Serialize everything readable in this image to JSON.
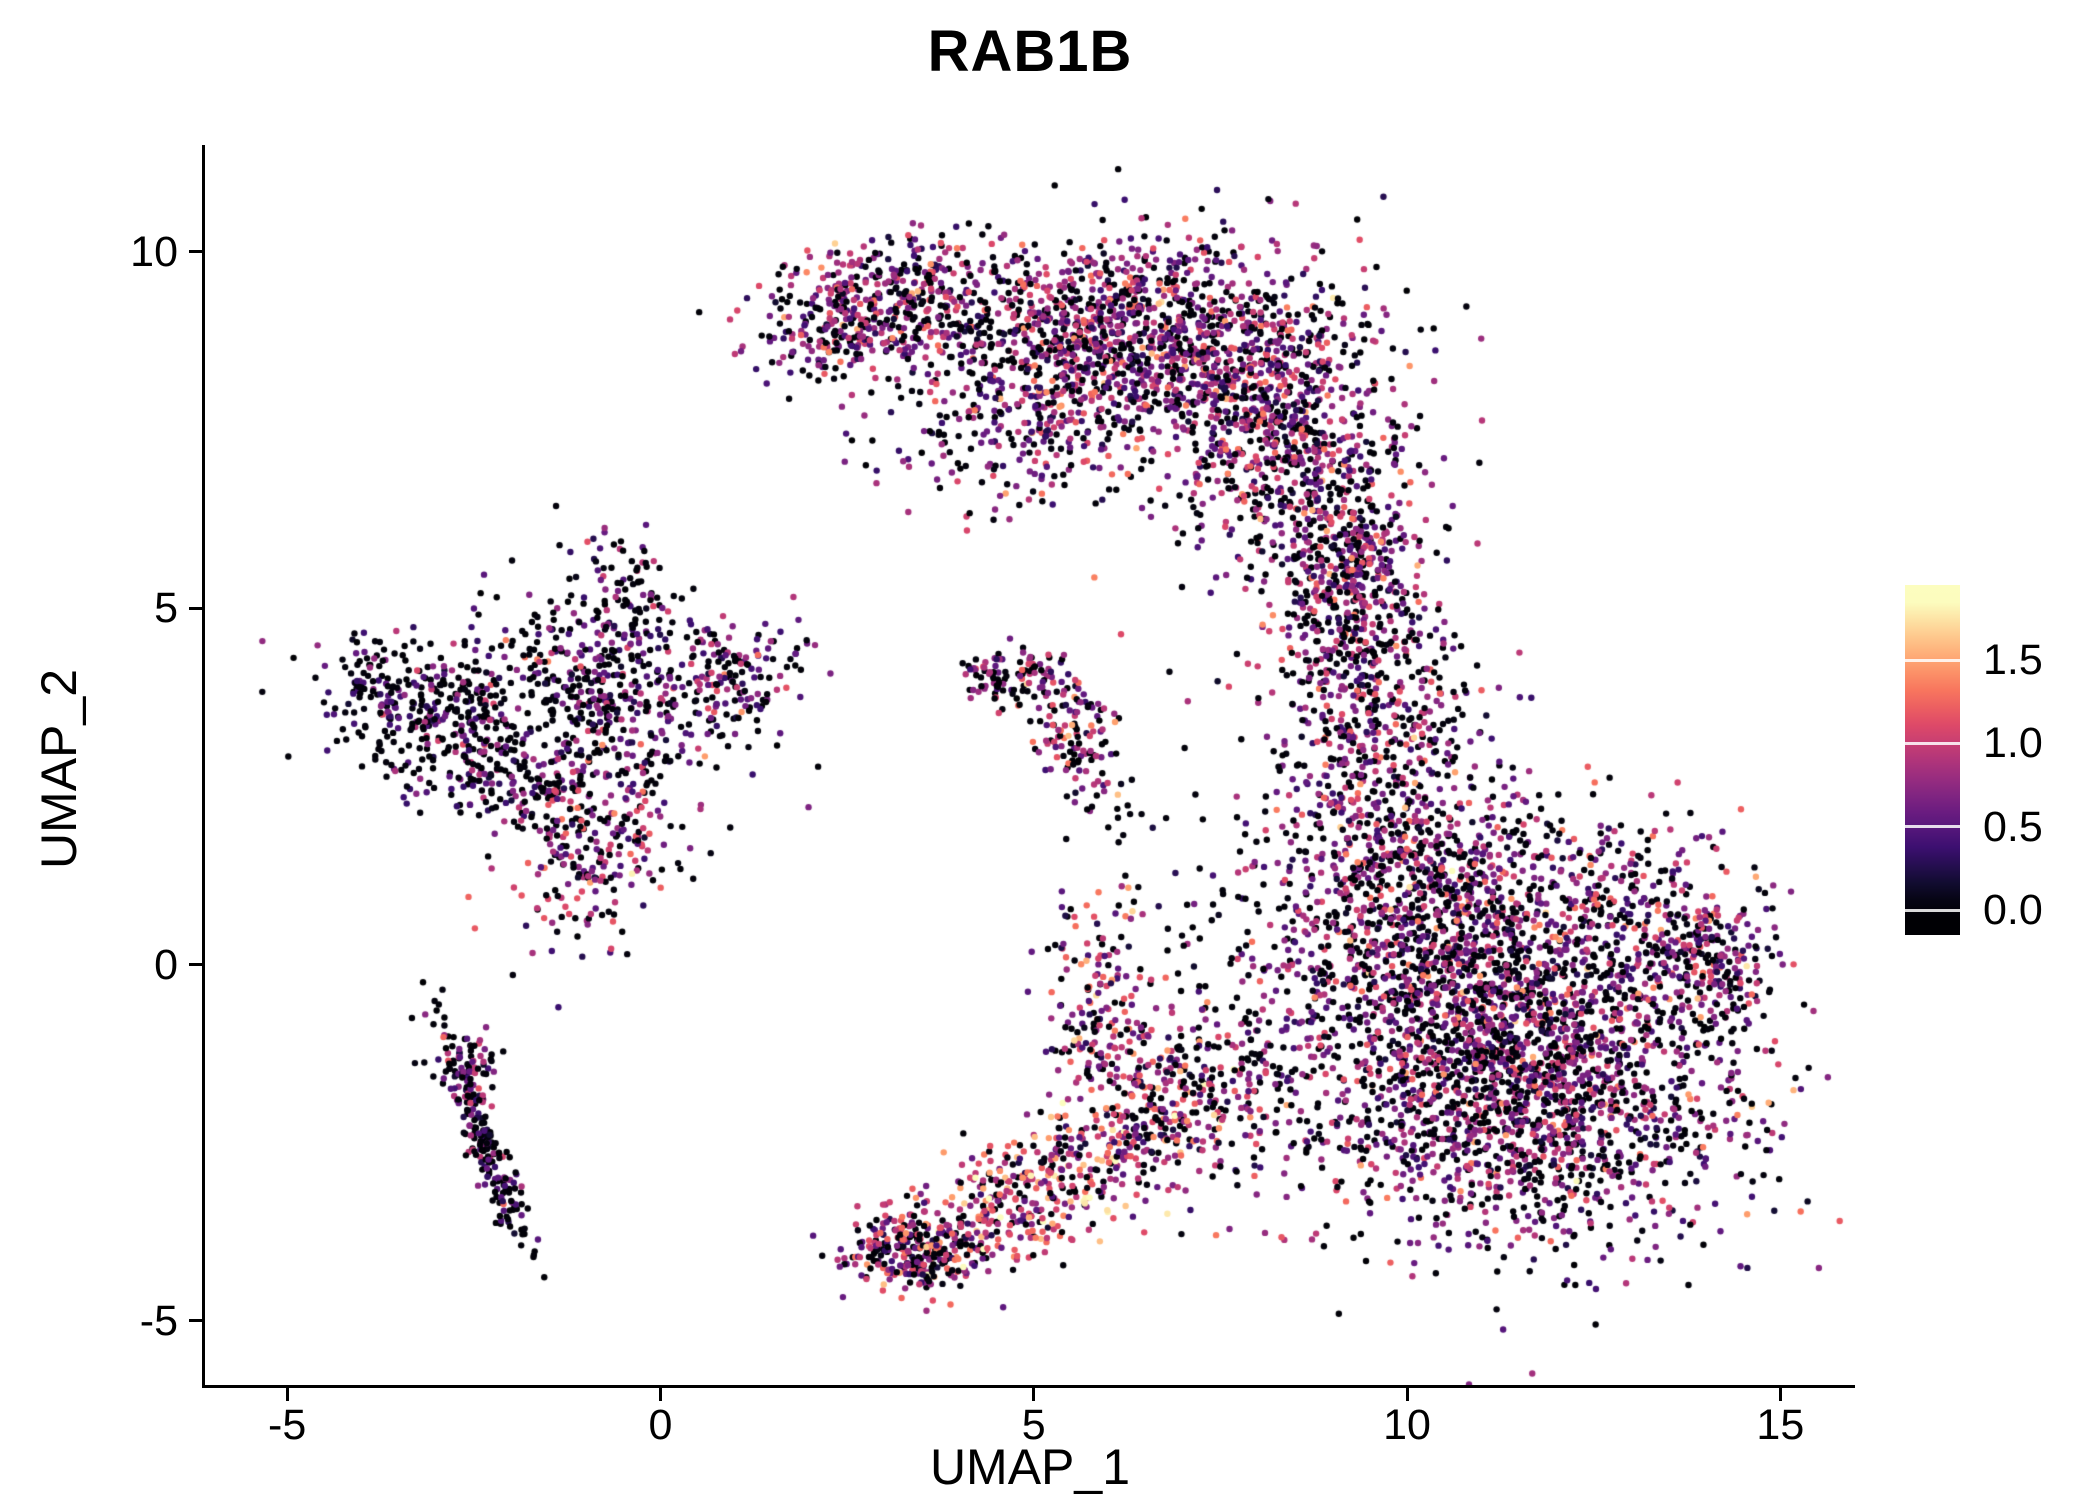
{
  "figure": {
    "background": "#ffffff",
    "axis_color": "#000000"
  },
  "chart_data": {
    "type": "scatter",
    "title": "RAB1B",
    "xlabel": "UMAP_1",
    "ylabel": "UMAP_2",
    "xlim": [
      -6.1,
      16.0
    ],
    "ylim": [
      -5.9,
      11.5
    ],
    "xticks": [
      -5,
      0,
      5,
      10,
      15
    ],
    "xtick_labels": [
      "-5",
      "0",
      "5",
      "10",
      "15"
    ],
    "yticks": [
      -5,
      0,
      5,
      10
    ],
    "ytick_labels": [
      "-5",
      "0",
      "5",
      "10"
    ],
    "grid": false,
    "point_radius": 3.2,
    "seed": 42,
    "colorbar": {
      "colormap": "magma",
      "ticks": [
        0.0,
        0.5,
        1.0,
        1.5
      ],
      "tick_labels": [
        "0.0",
        "0.5",
        "1.0",
        "1.5"
      ],
      "vmax": 1.85,
      "bar_lim": [
        -0.15,
        1.95
      ],
      "stops": [
        [
          0,
          "#000004"
        ],
        [
          0.1,
          "#140e36"
        ],
        [
          0.2,
          "#3b0f70"
        ],
        [
          0.3,
          "#641a80"
        ],
        [
          0.4,
          "#8c2981"
        ],
        [
          0.5,
          "#b73779"
        ],
        [
          0.6,
          "#de4968"
        ],
        [
          0.7,
          "#f7705c"
        ],
        [
          0.8,
          "#fe9f6d"
        ],
        [
          0.9,
          "#fecf92"
        ],
        [
          1,
          "#fcfdbf"
        ]
      ]
    },
    "clusters": [
      {
        "name": "top-arc-left",
        "n": 500,
        "cx": 2.9,
        "cy": 9.2,
        "sx": 0.85,
        "sy": 0.45,
        "rot": 12,
        "p0": 0.32,
        "mean": 0.75,
        "sd": 0.35
      },
      {
        "name": "top-arc-main",
        "n": 1300,
        "cx": 6.2,
        "cy": 8.8,
        "sx": 1.35,
        "sy": 0.75,
        "rot": 0,
        "p0": 0.32,
        "mean": 0.75,
        "sd": 0.35
      },
      {
        "name": "top-arc-right",
        "n": 650,
        "cx": 8.3,
        "cy": 7.5,
        "sx": 0.8,
        "sy": 0.95,
        "rot": 0,
        "p0": 0.33,
        "mean": 0.75,
        "sd": 0.35
      },
      {
        "name": "top-arc-tail",
        "n": 300,
        "cx": 9.3,
        "cy": 5.9,
        "sx": 0.45,
        "sy": 0.85,
        "rot": 0,
        "p0": 0.35,
        "mean": 0.7,
        "sd": 0.35
      },
      {
        "name": "top-arc-under",
        "n": 180,
        "cx": 4.9,
        "cy": 7.8,
        "sx": 1.1,
        "sy": 0.6,
        "rot": 15,
        "p0": 0.35,
        "mean": 0.7,
        "sd": 0.35
      },
      {
        "name": "right-main",
        "n": 2600,
        "cx": 11.4,
        "cy": -1.3,
        "sx": 1.55,
        "sy": 1.25,
        "rot": -8,
        "p0": 0.37,
        "mean": 0.7,
        "sd": 0.35
      },
      {
        "name": "right-upper",
        "n": 700,
        "cx": 10.2,
        "cy": 1.0,
        "sx": 1.0,
        "sy": 0.9,
        "rot": 0,
        "p0": 0.36,
        "mean": 0.72,
        "sd": 0.35
      },
      {
        "name": "right-strip",
        "n": 450,
        "cx": 9.6,
        "cy": 3.2,
        "sx": 0.65,
        "sy": 1.0,
        "rot": 0,
        "p0": 0.36,
        "mean": 0.75,
        "sd": 0.35
      },
      {
        "name": "right-neck",
        "n": 220,
        "cx": 9.1,
        "cy": 4.9,
        "sx": 0.55,
        "sy": 0.75,
        "rot": 0,
        "p0": 0.36,
        "mean": 0.7,
        "sd": 0.35
      },
      {
        "name": "right-edge",
        "n": 200,
        "cx": 13.9,
        "cy": 0.2,
        "sx": 0.5,
        "sy": 0.45,
        "rot": 20,
        "p0": 0.35,
        "mean": 0.7,
        "sd": 0.35
      },
      {
        "name": "right-bump",
        "n": 150,
        "cx": 12.6,
        "cy": 1.1,
        "sx": 0.8,
        "sy": 0.5,
        "rot": 10,
        "p0": 0.35,
        "mean": 0.7,
        "sd": 0.35
      },
      {
        "name": "left-main",
        "n": 480,
        "cx": -0.7,
        "cy": 3.8,
        "sx": 1.0,
        "sy": 0.75,
        "rot": 0,
        "p0": 0.48,
        "mean": 0.6,
        "sd": 0.32
      },
      {
        "name": "left-lobe",
        "n": 320,
        "cx": -2.9,
        "cy": 3.4,
        "sx": 0.75,
        "sy": 0.55,
        "rot": -15,
        "p0": 0.55,
        "mean": 0.55,
        "sd": 0.3
      },
      {
        "name": "left-lower-arm",
        "n": 230,
        "cx": -0.9,
        "cy": 1.6,
        "sx": 0.55,
        "sy": 0.65,
        "rot": -20,
        "p0": 0.35,
        "mean": 0.8,
        "sd": 0.35
      },
      {
        "name": "left-right-arm",
        "n": 120,
        "cx": 1.1,
        "cy": 4.1,
        "sx": 0.45,
        "sy": 0.35,
        "rot": 20,
        "p0": 0.45,
        "mean": 0.65,
        "sd": 0.3
      },
      {
        "name": "left-top-spur",
        "n": 80,
        "cx": -0.5,
        "cy": 5.2,
        "sx": 0.3,
        "sy": 0.45,
        "rot": 0,
        "p0": 0.5,
        "mean": 0.6,
        "sd": 0.3
      },
      {
        "name": "left-far-tip",
        "n": 60,
        "cx": -3.9,
        "cy": 4.0,
        "sx": 0.3,
        "sy": 0.3,
        "rot": 0,
        "p0": 0.55,
        "mean": 0.55,
        "sd": 0.3
      },
      {
        "name": "left-bridge",
        "n": 90,
        "cx": -1.8,
        "cy": 2.6,
        "sx": 0.5,
        "sy": 0.4,
        "rot": 0,
        "p0": 0.5,
        "mean": 0.6,
        "sd": 0.3
      },
      {
        "name": "lower-left-line",
        "n": 200,
        "cx": -2.35,
        "cy": -2.5,
        "sx": 0.12,
        "sy": 0.85,
        "rot": 20,
        "p0": 0.55,
        "mean": 0.55,
        "sd": 0.3
      },
      {
        "name": "lower-left-knot",
        "n": 70,
        "cx": -2.55,
        "cy": -1.5,
        "sx": 0.22,
        "sy": 0.3,
        "rot": 0,
        "p0": 0.45,
        "mean": 0.65,
        "sd": 0.3
      },
      {
        "name": "center-small-a",
        "n": 130,
        "cx": 5.55,
        "cy": 3.1,
        "sx": 0.3,
        "sy": 0.5,
        "rot": 25,
        "p0": 0.35,
        "mean": 0.8,
        "sd": 0.35
      },
      {
        "name": "center-small-b",
        "n": 70,
        "cx": 4.8,
        "cy": 4.0,
        "sx": 0.3,
        "sy": 0.22,
        "rot": 0,
        "p0": 0.4,
        "mean": 0.75,
        "sd": 0.3
      },
      {
        "name": "center-small-c",
        "n": 25,
        "cx": 4.35,
        "cy": 4.1,
        "sx": 0.18,
        "sy": 0.15,
        "rot": 0,
        "p0": 0.4,
        "mean": 0.7,
        "sd": 0.3
      },
      {
        "name": "bottom-left-end",
        "n": 280,
        "cx": 3.4,
        "cy": -4.0,
        "sx": 0.45,
        "sy": 0.3,
        "rot": -10,
        "p0": 0.3,
        "mean": 0.85,
        "sd": 0.4
      },
      {
        "name": "bottom-diagonal",
        "n": 420,
        "cx": 5.2,
        "cy": -3.1,
        "sx": 1.05,
        "sy": 0.4,
        "rot": 25,
        "p0": 0.25,
        "mean": 1.0,
        "sd": 0.4
      },
      {
        "name": "bottom-right",
        "n": 240,
        "cx": 6.7,
        "cy": -1.9,
        "sx": 0.6,
        "sy": 0.65,
        "rot": 20,
        "p0": 0.3,
        "mean": 0.85,
        "sd": 0.4
      },
      {
        "name": "bottom-up-arm",
        "n": 150,
        "cx": 5.85,
        "cy": -0.6,
        "sx": 0.35,
        "sy": 0.8,
        "rot": 0,
        "p0": 0.3,
        "mean": 0.9,
        "sd": 0.4
      },
      {
        "name": "bottom-bridge",
        "n": 130,
        "cx": 7.9,
        "cy": -1.1,
        "sx": 0.75,
        "sy": 0.95,
        "rot": 0,
        "p0": 0.4,
        "mean": 0.7,
        "sd": 0.35
      },
      {
        "name": "sparse-mid",
        "n": 60,
        "cx": 7.0,
        "cy": 1.3,
        "sx": 0.9,
        "sy": 1.1,
        "rot": 0,
        "p0": 0.5,
        "mean": 0.6,
        "sd": 0.3
      },
      {
        "name": "sparse-under-arc",
        "n": 25,
        "cx": 4.6,
        "cy": 6.7,
        "sx": 0.9,
        "sy": 0.5,
        "rot": 0,
        "p0": 0.45,
        "mean": 0.6,
        "sd": 0.3
      }
    ]
  }
}
